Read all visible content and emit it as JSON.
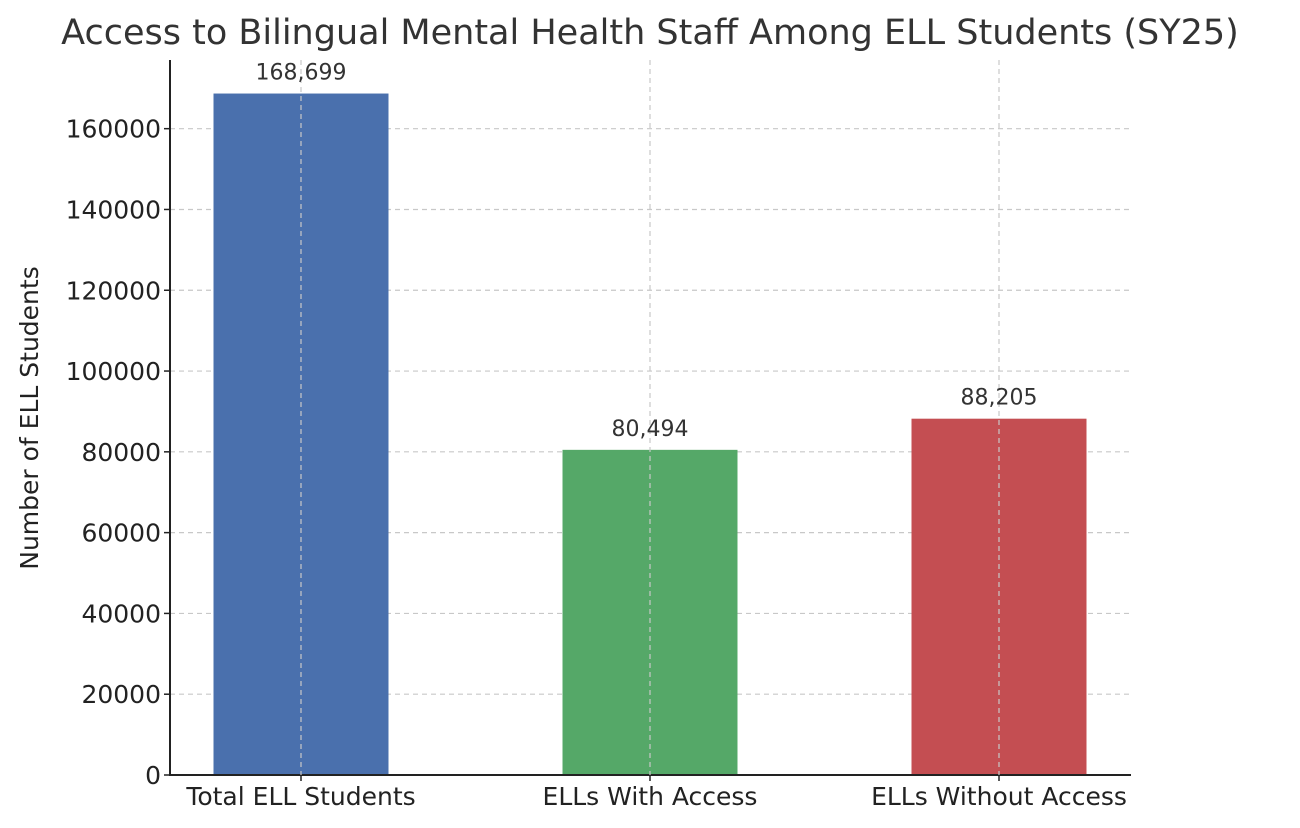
{
  "chart_data": {
    "type": "bar",
    "title": "Access to Bilingual Mental Health Staff Among ELL Students (SY25)",
    "xlabel": "",
    "ylabel": "Number of ELL Students",
    "categories": [
      "Total ELL Students",
      "ELLs With Access",
      "ELLs Without Access"
    ],
    "values": [
      168699,
      80494,
      88205
    ],
    "data_labels": [
      "168,699",
      "80,494",
      "88,205"
    ],
    "colors": [
      "#4a70ad",
      "#55a868",
      "#c44e52"
    ],
    "ylim": [
      0,
      177000
    ],
    "yticks": [
      0,
      20000,
      40000,
      60000,
      80000,
      100000,
      120000,
      140000,
      160000
    ],
    "grid": true,
    "legend": "none"
  }
}
